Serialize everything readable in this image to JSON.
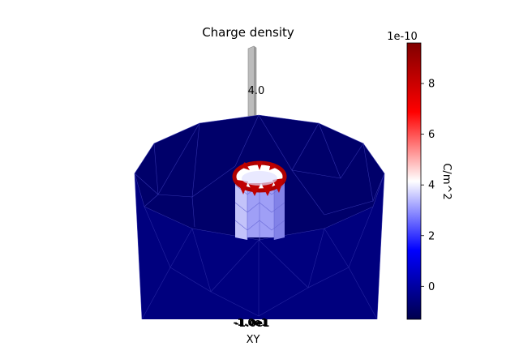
{
  "chart_data": {
    "type": "3d-surface",
    "title": "Charge density",
    "xlabel": "XY",
    "zlabel_tick": "4.0",
    "colorbar": {
      "label": "C/m^2",
      "exponent": "1e-10",
      "colormap": "seismic",
      "range": [
        -1.3,
        9.6
      ],
      "ticks": [
        0,
        2,
        4,
        6,
        8
      ],
      "tick_labels": [
        "0",
        "2",
        "4",
        "6",
        "8"
      ]
    },
    "surfaces": [
      {
        "name": "outer cylinder wall",
        "value_range": [
          -1.3,
          -1.1
        ]
      },
      {
        "name": "bottom annulus",
        "value_range": [
          -1.3,
          -1.2
        ]
      },
      {
        "name": "inner cylinder wall",
        "value_range": [
          2.5,
          4.0
        ]
      },
      {
        "name": "inner top rim",
        "value_range": [
          6.0,
          9.6
        ]
      }
    ]
  },
  "colors": {
    "outer_wall": "#00007e",
    "floor": "#000066",
    "inner_wall": "#9f9ff6",
    "rim_high": "#b00000",
    "rim_low": "#ffffff"
  }
}
